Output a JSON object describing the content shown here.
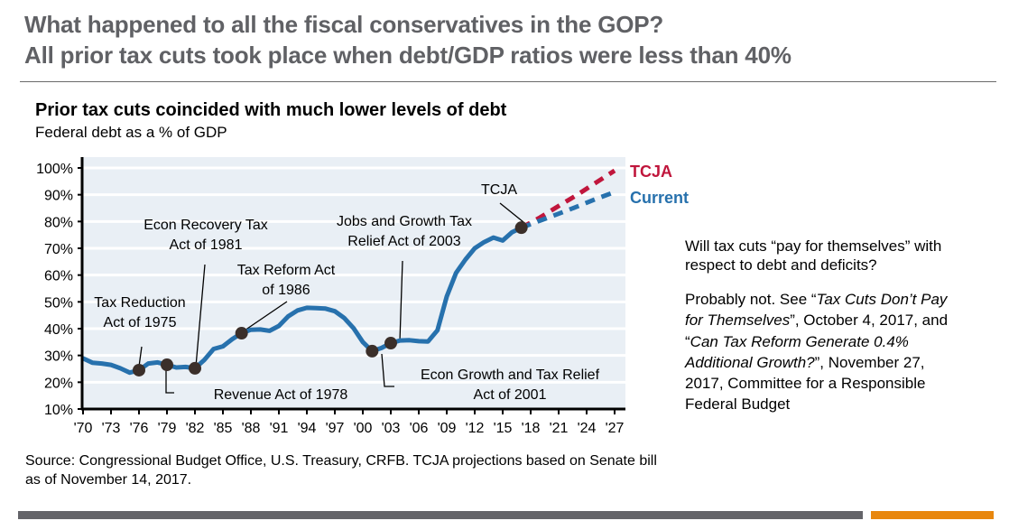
{
  "header": {
    "line1": "What happened to all the fiscal conservatives in the GOP?",
    "line2": "All prior tax cuts took place when debt/GDP ratios were less than 40%"
  },
  "sidebar": {
    "question": "Will tax cuts “pay for themselves” with respect to debt and deficits?",
    "answer_parts": [
      {
        "text": "Probably not.   See “",
        "italic": false
      },
      {
        "text": "Tax Cuts Don’t Pay for Themselves",
        "italic": true
      },
      {
        "text": "”, October 4, 2017, and “",
        "italic": false
      },
      {
        "text": "Can Tax Reform Generate 0.4% Additional Growth?",
        "italic": true
      },
      {
        "text": "”, November 27, 2017, Committee for a Responsible Federal Budget",
        "italic": false
      }
    ]
  },
  "source": "Source: Congressional Budget Office, U.S. Treasury, CRFB. TCJA projections based on Senate bill as of November 14, 2017.",
  "colors": {
    "header_text": "#606165",
    "plot_bg": "#e9eff5",
    "historical": "#2771ad",
    "tcja": "#c0163c",
    "current": "#2771ad",
    "marker": "#3b2f2a",
    "bar_gray": "#646469",
    "bar_orange": "#e8870e"
  },
  "chart_data": {
    "type": "line",
    "title": "Prior tax cuts coincided with much lower levels of debt",
    "subtitle": "Federal debt as a % of GDP",
    "xlabel": "",
    "ylabel": "",
    "xlim": [
      1970,
      2027
    ],
    "ylim": [
      10,
      100
    ],
    "grid": true,
    "y_ticks": [
      10,
      20,
      30,
      40,
      50,
      60,
      70,
      80,
      90,
      100
    ],
    "y_tick_labels": [
      "10%",
      "20%",
      "30%",
      "40%",
      "50%",
      "60%",
      "70%",
      "80%",
      "90%",
      "100%"
    ],
    "x_ticks": [
      1970,
      1973,
      1976,
      1979,
      1982,
      1985,
      1988,
      1991,
      1994,
      1997,
      2000,
      2003,
      2006,
      2009,
      2012,
      2015,
      2018,
      2021,
      2024,
      2027
    ],
    "x_tick_labels": [
      "'70",
      "'73",
      "'76",
      "'79",
      "'82",
      "'85",
      "'88",
      "'91",
      "'94",
      "'97",
      "'00",
      "'03",
      "'06",
      "'09",
      "'12",
      "'15",
      "'18",
      "'21",
      "'24",
      "'27"
    ],
    "series": [
      {
        "name": "Historical",
        "style": "solid",
        "x": [
          1970,
          1971,
          1972,
          1973,
          1974,
          1975,
          1976,
          1977,
          1978,
          1979,
          1980,
          1981,
          1982,
          1983,
          1984,
          1985,
          1986,
          1987,
          1988,
          1989,
          1990,
          1991,
          1992,
          1993,
          1994,
          1995,
          1996,
          1997,
          1998,
          1999,
          2000,
          2001,
          2002,
          2003,
          2004,
          2005,
          2006,
          2007,
          2008,
          2009,
          2010,
          2011,
          2012,
          2013,
          2014,
          2015,
          2016,
          2017
        ],
        "values": [
          28.9,
          27.3,
          27.0,
          26.5,
          25.2,
          23.6,
          24.5,
          27.0,
          27.4,
          26.5,
          25.5,
          25.7,
          25.2,
          28.3,
          32.4,
          33.4,
          36.1,
          38.3,
          39.6,
          39.7,
          39.2,
          41.0,
          44.6,
          46.8,
          47.8,
          47.7,
          47.5,
          46.5,
          44.0,
          40.2,
          35.0,
          31.6,
          32.8,
          34.6,
          35.6,
          35.7,
          35.3,
          35.2,
          39.4,
          52.0,
          60.8,
          65.8,
          70.0,
          72.3,
          74.0,
          72.9,
          76.0,
          77.7
        ]
      },
      {
        "name": "TCJA",
        "style": "dashed",
        "x": [
          2017,
          2019,
          2021,
          2023,
          2025,
          2027
        ],
        "values": [
          77.7,
          81.5,
          85.8,
          90.0,
          94.5,
          99.0
        ]
      },
      {
        "name": "Current",
        "style": "dashed",
        "x": [
          2017,
          2019,
          2021,
          2023,
          2025,
          2027
        ],
        "values": [
          77.7,
          80.3,
          82.9,
          85.6,
          88.4,
          91.0
        ]
      }
    ],
    "legend": [
      {
        "name": "TCJA",
        "placement": "right-of-line-end"
      },
      {
        "name": "Current",
        "placement": "right-of-line-end"
      }
    ],
    "annotations": [
      {
        "label": [
          "Tax Reduction",
          "Act of 1975"
        ],
        "year": 1976,
        "value": 24.5
      },
      {
        "label": [
          "Revenue Act of 1978"
        ],
        "year": 1979,
        "value": 26.5
      },
      {
        "label": [
          "Econ Recovery Tax",
          "Act of 1981"
        ],
        "year": 1982,
        "value": 25.2
      },
      {
        "label": [
          "Tax Reform Act",
          "of 1986"
        ],
        "year": 1987,
        "value": 38.3
      },
      {
        "label": [
          "Econ Growth and Tax Relief",
          "Act of 2001"
        ],
        "year": 2001,
        "value": 31.6
      },
      {
        "label": [
          "Jobs and Growth Tax",
          "Relief Act of 2003"
        ],
        "year": 2003,
        "value": 34.6
      },
      {
        "label": [
          "TCJA"
        ],
        "year": 2017,
        "value": 77.7
      }
    ]
  }
}
